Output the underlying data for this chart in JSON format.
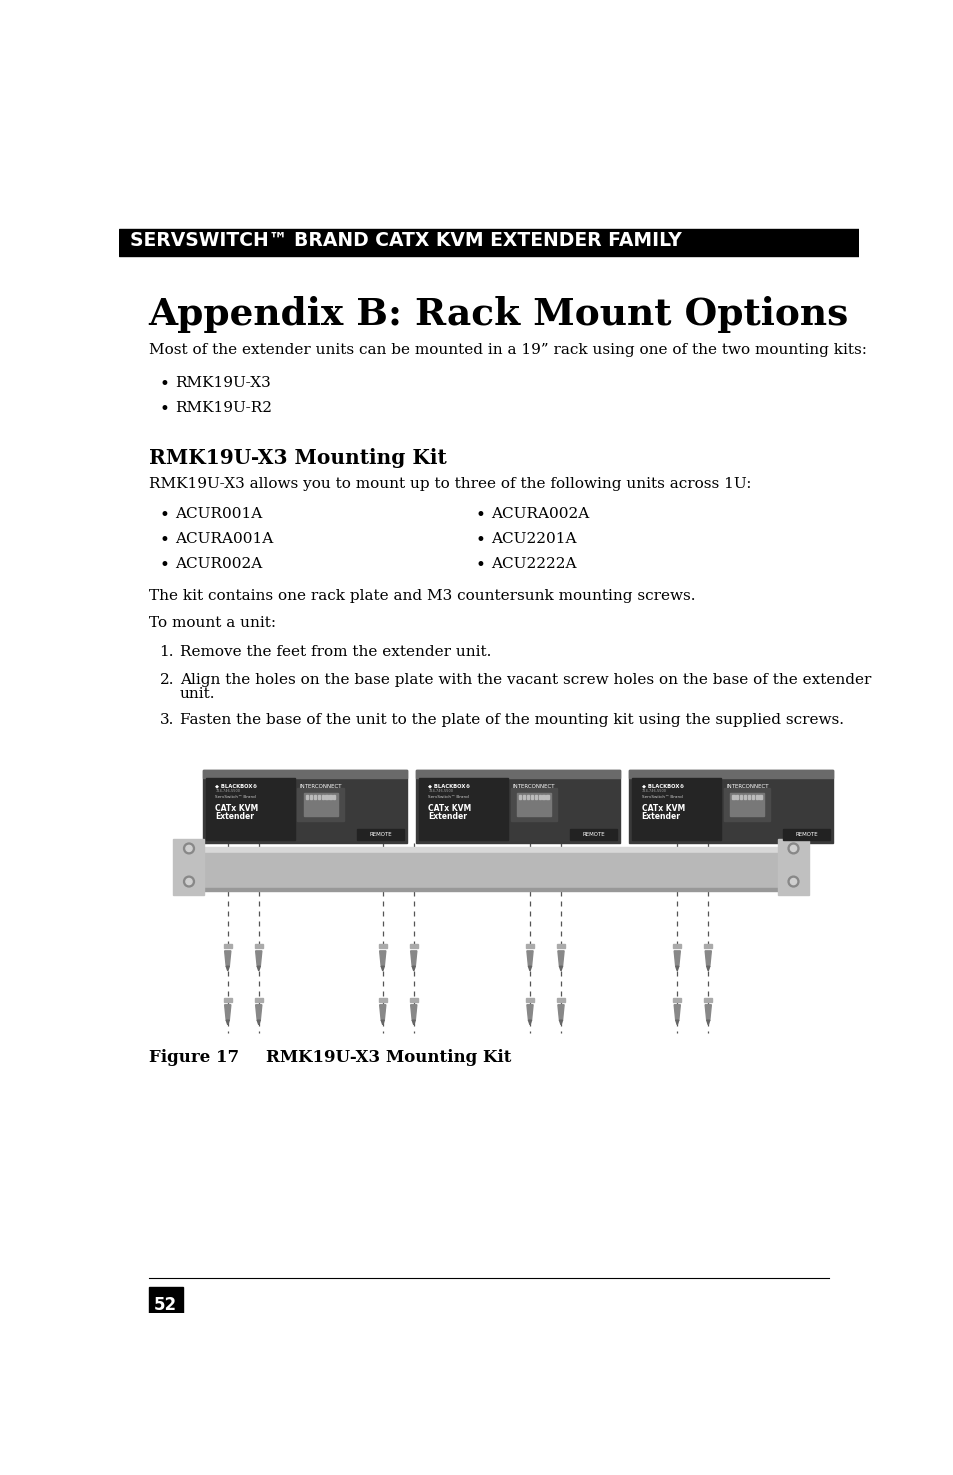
{
  "header_text": "SERVSWITCH™ BRAND CATX KVM EXTENDER FAMILY",
  "header_bg": "#000000",
  "header_fg": "#ffffff",
  "title": "Appendix B: Rack Mount Options",
  "body_intro": "Most of the extender units can be mounted in a 19” rack using one of the two mounting kits:",
  "bullet_kits": [
    "RMK19U-X3",
    "RMK19U-R2"
  ],
  "section_heading": "RMK19U-X3 Mounting Kit",
  "section_intro": "RMK19U-X3 allows you to mount up to three of the following units across 1U:",
  "bullet_units_left": [
    "ACUR001A",
    "ACURA001A",
    "ACUR002A"
  ],
  "bullet_units_right": [
    "ACURA002A",
    "ACU2201A",
    "ACU2222A"
  ],
  "kit_note": "The kit contains one rack plate and M3 countersunk mounting screws.",
  "mount_intro": "To mount a unit:",
  "numbered_steps": [
    "Remove the feet from the extender unit.",
    "Align the holes on the base plate with the vacant screw holes on the base of the extender\nunit.",
    "Fasten the base of the unit to the plate of the mounting kit using the supplied screws."
  ],
  "figure_label": "Figure 17",
  "figure_caption": "RMK19U-X3 Mounting Kit",
  "page_number": "52",
  "bg_color": "#ffffff",
  "text_color": "#000000"
}
